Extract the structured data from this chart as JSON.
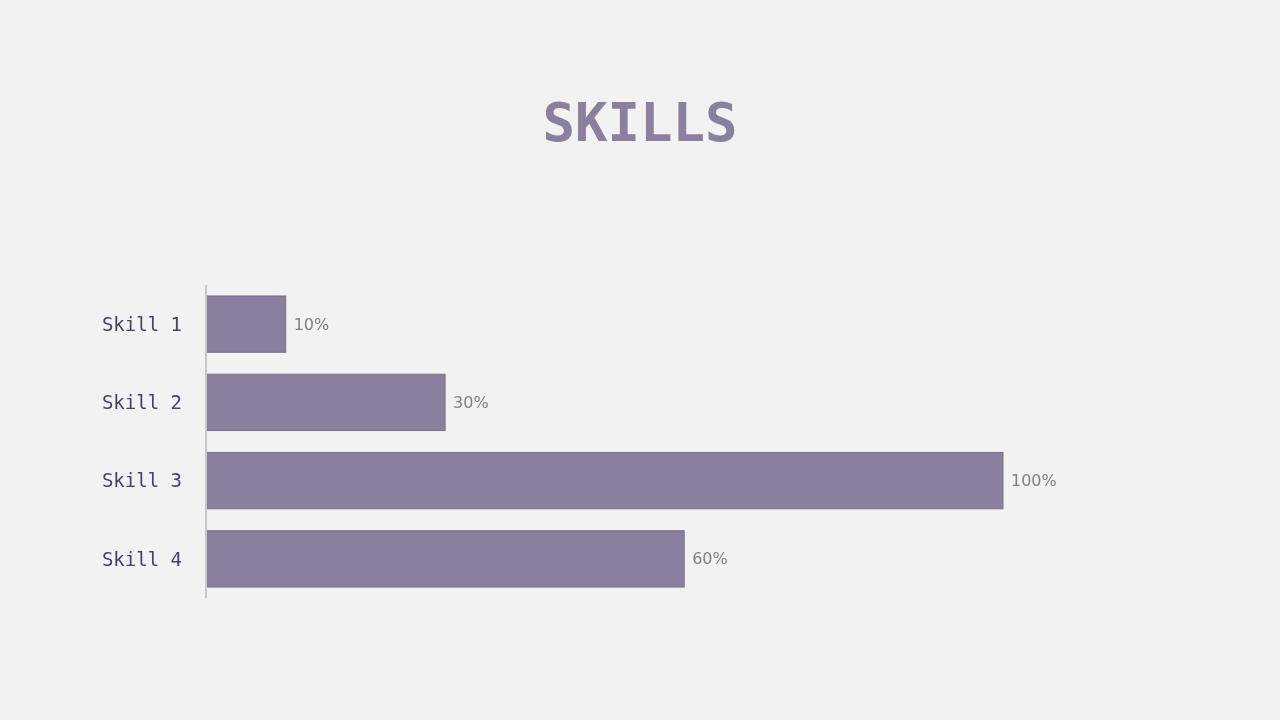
{
  "chart_data": {
    "type": "bar",
    "orientation": "horizontal",
    "title": "SKILLS",
    "categories": [
      "Skill 1",
      "Skill 2",
      "Skill 3",
      "Skill 4"
    ],
    "values": [
      10,
      30,
      100,
      60
    ],
    "value_labels": [
      "10%",
      "30%",
      "100%",
      "60%"
    ],
    "color": "#8a7f9c"
  }
}
